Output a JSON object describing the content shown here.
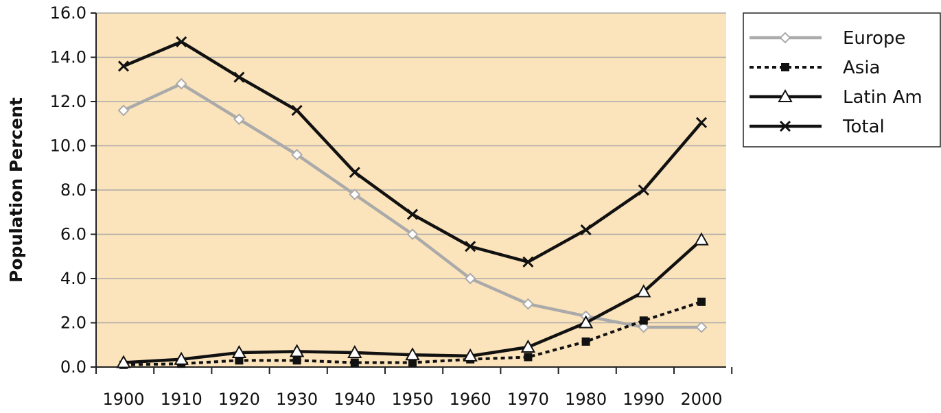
{
  "chart_data": {
    "type": "line",
    "title": "",
    "xlabel": "",
    "ylabel": "Population Percent",
    "x": [
      1900,
      1910,
      1920,
      1930,
      1940,
      1950,
      1960,
      1970,
      1980,
      1990,
      2000
    ],
    "xticks": [
      "1900",
      "1910",
      "1920",
      "1930",
      "1940",
      "1950",
      "1960",
      "1970",
      "1980",
      "1990",
      "2000"
    ],
    "yticks": [
      "0.0",
      "2.0",
      "4.0",
      "6.0",
      "8.0",
      "10.0",
      "12.0",
      "14.0",
      "16.0"
    ],
    "ylim": [
      0,
      16
    ],
    "grid": true,
    "plot_background": "#fbe3bb",
    "legend_position": "right",
    "series": [
      {
        "name": "Europe",
        "values": [
          11.6,
          12.8,
          11.2,
          9.6,
          7.8,
          6.0,
          4.0,
          2.85,
          2.3,
          1.8,
          1.8
        ],
        "color": "#aaaaaa",
        "dash": "solid",
        "marker": "diamond-open"
      },
      {
        "name": "Asia",
        "values": [
          0.1,
          0.15,
          0.3,
          0.3,
          0.2,
          0.2,
          0.35,
          0.45,
          1.15,
          2.1,
          2.95
        ],
        "color": "#111111",
        "dash": "dotted",
        "marker": "square-filled"
      },
      {
        "name": "Latin Am",
        "values": [
          0.2,
          0.35,
          0.65,
          0.7,
          0.65,
          0.55,
          0.5,
          0.9,
          2.0,
          3.4,
          5.75
        ],
        "color": "#111111",
        "dash": "solid",
        "marker": "triangle-open"
      },
      {
        "name": "Total",
        "values": [
          13.6,
          14.7,
          13.1,
          11.6,
          8.8,
          6.9,
          5.45,
          4.75,
          6.2,
          8.0,
          11.05
        ],
        "color": "#111111",
        "dash": "solid",
        "marker": "x"
      }
    ]
  }
}
